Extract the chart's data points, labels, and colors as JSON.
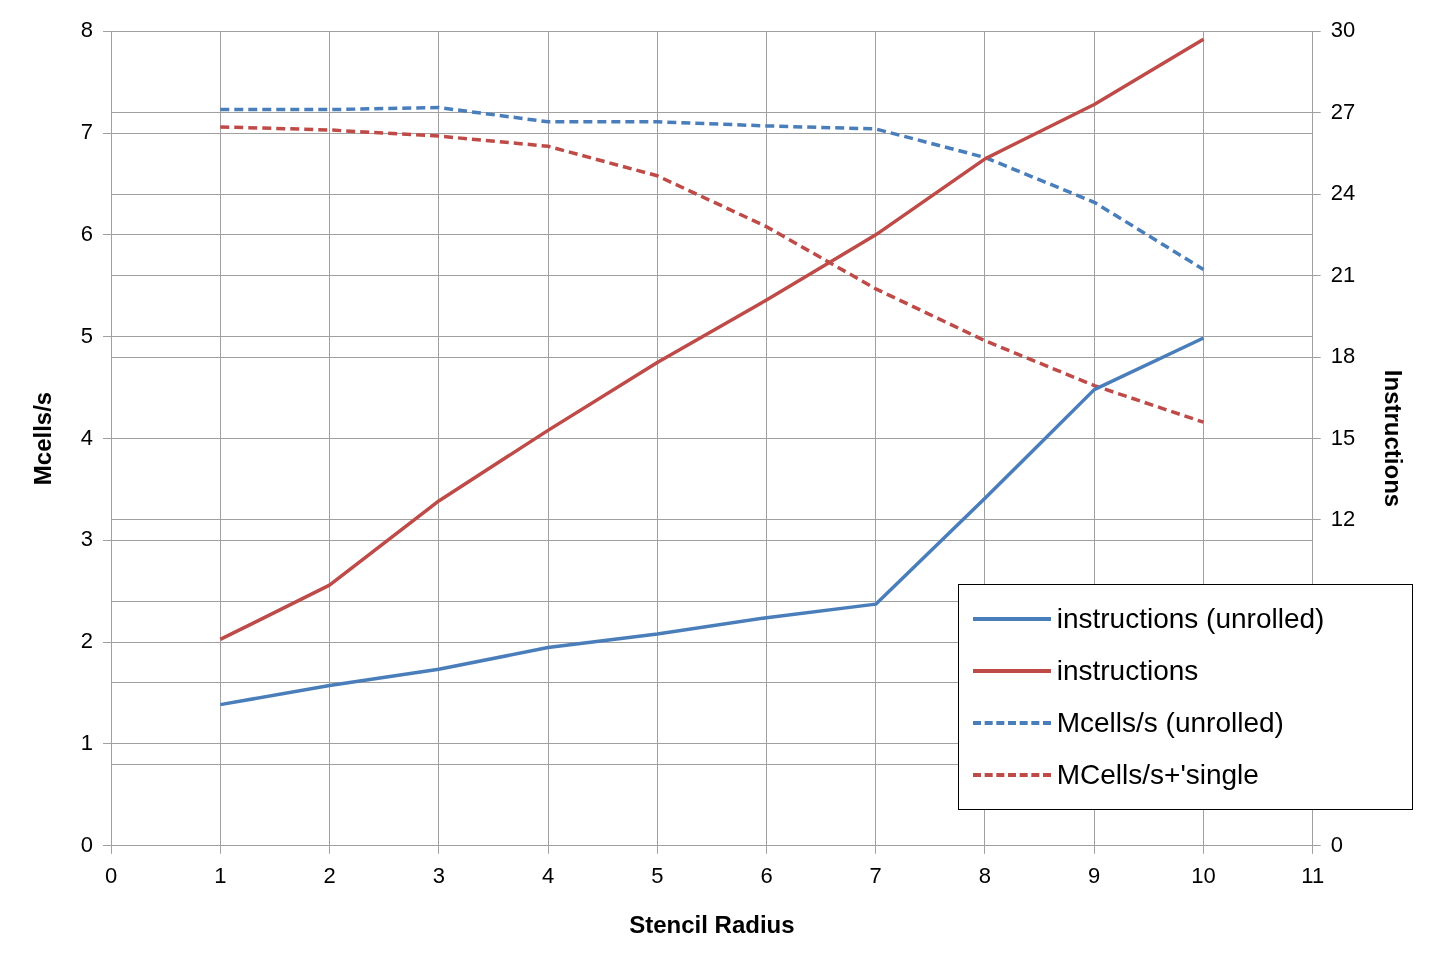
{
  "chart_data": {
    "type": "line",
    "xlabel": "Stencil Radius",
    "ylabel": "Mcells/s",
    "y2label": "Instructions",
    "x": [
      1,
      2,
      3,
      4,
      5,
      6,
      7,
      8,
      9,
      10
    ],
    "xlim": [
      0,
      11
    ],
    "xticks": [
      0,
      1,
      2,
      3,
      4,
      5,
      6,
      7,
      8,
      9,
      10,
      11
    ],
    "ylim": [
      0,
      8
    ],
    "yticks": [
      0,
      1,
      2,
      3,
      4,
      5,
      6,
      7,
      8
    ],
    "y2lim": [
      0,
      30
    ],
    "y2ticks": [
      0,
      {
        "value": 3,
        "label": null
      },
      {
        "value": 6,
        "label": null
      },
      {
        "value": 9,
        "label": null
      },
      12,
      15,
      18,
      21,
      24,
      27,
      30
    ],
    "grid": true,
    "legend": "bottom right",
    "marker": "none",
    "series": [
      {
        "name": "instructions (unrolled)",
        "color": "#4a7ebb",
        "axis": "y2",
        "line_style": "solid",
        "values": [
          5.2,
          5.9,
          6.5,
          7.3,
          7.8,
          8.4,
          8.9,
          12.8,
          16.8,
          18.7
        ]
      },
      {
        "name": "instructions",
        "color": "#be4b48",
        "axis": "y2",
        "line_style": "solid",
        "values": [
          7.6,
          9.6,
          12.7,
          15.3,
          17.8,
          20.1,
          22.5,
          25.3,
          27.3,
          29.7
        ]
      },
      {
        "name": "Mcells/s (unrolled)",
        "color": "#4a7ebb",
        "line_style": "dashed",
        "values": [
          7.23,
          7.23,
          7.25,
          7.11,
          7.11,
          7.07,
          7.04,
          6.76,
          6.32,
          5.66
        ]
      },
      {
        "name": "MCells/s+'single",
        "color": "#be4b48",
        "line_style": "dashed",
        "values": [
          7.06,
          7.03,
          6.97,
          6.87,
          6.58,
          6.08,
          5.47,
          4.96,
          4.52,
          4.16
        ]
      }
    ]
  }
}
